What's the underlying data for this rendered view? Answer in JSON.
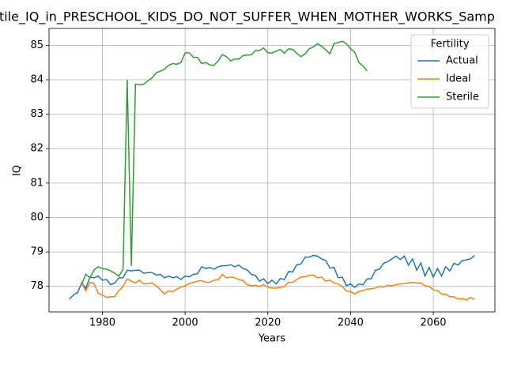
{
  "chart_data": {
    "type": "line",
    "title": "tile_IQ_in_PRESCHOOL_KIDS_DO_NOT_SUFFER_WHEN_MOTHER_WORKS_Samp",
    "xlabel": "Years",
    "ylabel": "IQ",
    "legend_title": "Fertility",
    "legend": "upper right",
    "grid": true,
    "xlim": [
      1967.1,
      2074.9
    ],
    "xticks": [
      1980,
      2000,
      2020,
      2040,
      2060
    ],
    "ylim": [
      77.26,
      85.49
    ],
    "yticks": [
      78,
      79,
      80,
      81,
      82,
      83,
      84,
      85
    ],
    "x": [
      1972,
      1973,
      1974,
      1975,
      1976,
      1977,
      1978,
      1979,
      1980,
      1981,
      1982,
      1983,
      1984,
      1985,
      1986,
      1987,
      1988,
      1989,
      1990,
      1991,
      1992,
      1993,
      1994,
      1995,
      1996,
      1997,
      1998,
      1999,
      2000,
      2001,
      2002,
      2003,
      2004,
      2005,
      2006,
      2007,
      2008,
      2009,
      2010,
      2011,
      2012,
      2013,
      2014,
      2015,
      2016,
      2017,
      2018,
      2019,
      2020,
      2021,
      2022,
      2023,
      2024,
      2025,
      2026,
      2027,
      2028,
      2029,
      2030,
      2031,
      2032,
      2033,
      2034,
      2035,
      2036,
      2037,
      2038,
      2039,
      2040,
      2041,
      2042,
      2043,
      2044,
      2045,
      2046,
      2047,
      2048,
      2049,
      2050,
      2051,
      2052,
      2053,
      2054,
      2055,
      2056,
      2057,
      2058,
      2059,
      2060,
      2061,
      2062,
      2063,
      2064,
      2065,
      2066,
      2067,
      2068,
      2069,
      2070
    ],
    "series": [
      {
        "name": "Actual",
        "color": "#1f77b4",
        "values": [
          77.63,
          77.75,
          77.82,
          78.1,
          77.95,
          78.27,
          78.25,
          78.3,
          78.18,
          78.2,
          78.05,
          78.1,
          78.25,
          78.25,
          78.47,
          78.45,
          78.47,
          78.47,
          78.38,
          78.4,
          78.4,
          78.33,
          78.35,
          78.25,
          78.3,
          78.25,
          78.28,
          78.2,
          78.3,
          78.28,
          78.35,
          78.37,
          78.57,
          78.52,
          78.55,
          78.5,
          78.57,
          78.6,
          78.6,
          78.63,
          78.57,
          78.62,
          78.52,
          78.48,
          78.35,
          78.32,
          78.15,
          78.22,
          78.08,
          78.18,
          78.07,
          78.23,
          78.2,
          78.43,
          78.42,
          78.63,
          78.65,
          78.85,
          78.85,
          78.9,
          78.88,
          78.8,
          78.75,
          78.53,
          78.55,
          78.25,
          78.27,
          78.02,
          78.07,
          77.97,
          78.07,
          78.05,
          78.22,
          78.22,
          78.47,
          78.5,
          78.67,
          78.72,
          78.8,
          78.88,
          78.78,
          78.88,
          78.62,
          78.8,
          78.47,
          78.68,
          78.3,
          78.55,
          78.27,
          78.52,
          78.3,
          78.57,
          78.45,
          78.67,
          78.62,
          78.75,
          78.77,
          78.8,
          78.9
        ]
      },
      {
        "name": "Ideal",
        "color": "#ff7f0e",
        "values": [
          null,
          null,
          null,
          78.1,
          77.87,
          78.12,
          78.08,
          77.8,
          77.75,
          77.68,
          77.7,
          77.7,
          77.88,
          78.0,
          78.22,
          78.15,
          78.1,
          78.18,
          78.07,
          78.08,
          78.1,
          78.02,
          77.9,
          77.78,
          77.87,
          77.85,
          77.92,
          77.98,
          78.02,
          78.08,
          78.12,
          78.15,
          78.17,
          78.12,
          78.12,
          78.18,
          78.2,
          78.35,
          78.25,
          78.27,
          78.25,
          78.2,
          78.17,
          78.05,
          78.02,
          78.03,
          78.0,
          78.05,
          77.98,
          77.95,
          77.95,
          77.97,
          78.0,
          78.12,
          78.12,
          78.2,
          78.27,
          78.28,
          78.32,
          78.33,
          78.25,
          78.27,
          78.15,
          78.18,
          78.1,
          78.07,
          78.0,
          77.87,
          77.85,
          77.78,
          77.85,
          77.88,
          77.92,
          77.93,
          77.95,
          78.0,
          77.98,
          78.03,
          78.02,
          78.05,
          78.07,
          78.08,
          78.1,
          78.12,
          78.1,
          78.1,
          78.02,
          78.0,
          77.9,
          77.88,
          77.78,
          77.77,
          77.7,
          77.7,
          77.63,
          77.65,
          77.6,
          77.68,
          77.62
        ]
      },
      {
        "name": "Sterile",
        "color": "#2ca02c",
        "values": [
          null,
          null,
          null,
          78.07,
          78.35,
          78.25,
          78.48,
          78.57,
          78.52,
          78.5,
          78.45,
          78.38,
          78.3,
          78.5,
          84.0,
          78.6,
          83.87,
          83.85,
          83.87,
          83.97,
          84.05,
          84.2,
          84.25,
          84.3,
          84.42,
          84.47,
          84.45,
          84.5,
          84.78,
          84.78,
          84.65,
          84.65,
          84.47,
          84.5,
          84.43,
          84.42,
          84.55,
          84.73,
          84.67,
          84.55,
          84.6,
          84.6,
          84.7,
          84.72,
          84.72,
          84.85,
          84.85,
          84.92,
          84.78,
          84.78,
          84.83,
          84.88,
          84.77,
          84.9,
          84.88,
          84.77,
          84.67,
          84.75,
          84.9,
          84.95,
          85.05,
          84.97,
          84.87,
          84.75,
          85.05,
          85.08,
          85.12,
          85.05,
          84.9,
          84.8,
          84.5,
          84.4,
          84.25,
          null,
          null,
          null,
          null,
          null,
          null,
          null,
          null,
          null,
          null,
          null,
          null,
          null,
          null,
          null,
          null,
          null,
          null,
          null,
          null,
          null,
          null,
          null,
          null,
          null,
          null
        ]
      }
    ]
  }
}
